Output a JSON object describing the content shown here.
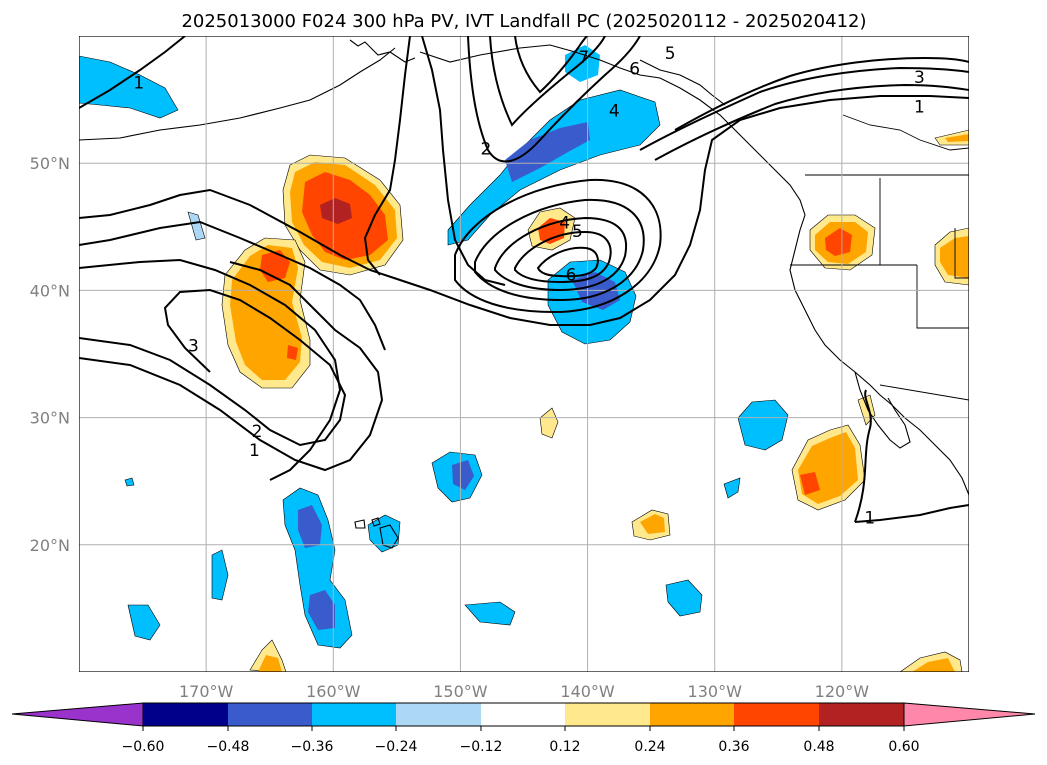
{
  "title": "2025013000 F024 300 hPa PV, IVT Landfall PC (2025020112 - 2025020412)",
  "colors": {
    "c_neg_ext": "#9933cc",
    "c_neg_060": "#00008b",
    "c_neg_048": "#3a5bcc",
    "c_neg_036": "#00bfff",
    "c_neg_024": "#add8f5",
    "c_neg_012": "#ffffff",
    "c_pos_012": "#ffe98c",
    "c_pos_024": "#ffa500",
    "c_pos_036": "#ff4500",
    "c_pos_048": "#b22222",
    "c_pos_ext": "#ff88aa"
  },
  "chart_data": {
    "type": "heatmap",
    "title": "2025013000 F024 300 hPa PV, IVT Landfall PC (2025020112 - 2025020412)",
    "map_projection": "equirectangular",
    "lon_range": [
      -180,
      -110
    ],
    "lat_range": [
      10,
      60
    ],
    "grid": true,
    "x_ticks": [
      "170°W",
      "160°W",
      "150°W",
      "140°W",
      "130°W",
      "120°W"
    ],
    "x_tick_values": [
      -170,
      -160,
      -150,
      -140,
      -130,
      -120
    ],
    "y_ticks": [
      "20°N",
      "30°N",
      "40°N",
      "50°N"
    ],
    "y_tick_values": [
      20,
      30,
      40,
      50
    ],
    "colorbar": {
      "orientation": "horizontal",
      "extend": "both",
      "levels": [
        -0.6,
        -0.48,
        -0.36,
        -0.24,
        -0.12,
        0.12,
        0.24,
        0.36,
        0.48,
        0.6
      ],
      "tick_labels": [
        "−0.60",
        "−0.48",
        "−0.36",
        "−0.24",
        "−0.12",
        "0.12",
        "0.24",
        "0.36",
        "0.48",
        "0.60"
      ]
    },
    "contour_line_labels": [
      {
        "text": "1",
        "lon": -175.3,
        "lat": 56.2
      },
      {
        "text": "2",
        "lon": -148.0,
        "lat": 51.0
      },
      {
        "text": "3",
        "lon": -171.0,
        "lat": 35.5
      },
      {
        "text": "2",
        "lon": -166.0,
        "lat": 28.8
      },
      {
        "text": "1",
        "lon": -166.2,
        "lat": 27.3
      },
      {
        "text": "4",
        "lon": -141.8,
        "lat": 45.2
      },
      {
        "text": "5",
        "lon": -140.8,
        "lat": 44.5
      },
      {
        "text": "6",
        "lon": -141.3,
        "lat": 41.1
      },
      {
        "text": "7",
        "lon": -140.3,
        "lat": 58.2
      },
      {
        "text": "6",
        "lon": -136.3,
        "lat": 57.3
      },
      {
        "text": "5",
        "lon": -133.5,
        "lat": 58.5
      },
      {
        "text": "4",
        "lon": -137.9,
        "lat": 54.0
      },
      {
        "text": "3",
        "lon": -113.9,
        "lat": 56.6
      },
      {
        "text": "1",
        "lon": -113.9,
        "lat": 54.3
      },
      {
        "text": "1",
        "lon": -117.8,
        "lat": 22.0
      }
    ]
  }
}
